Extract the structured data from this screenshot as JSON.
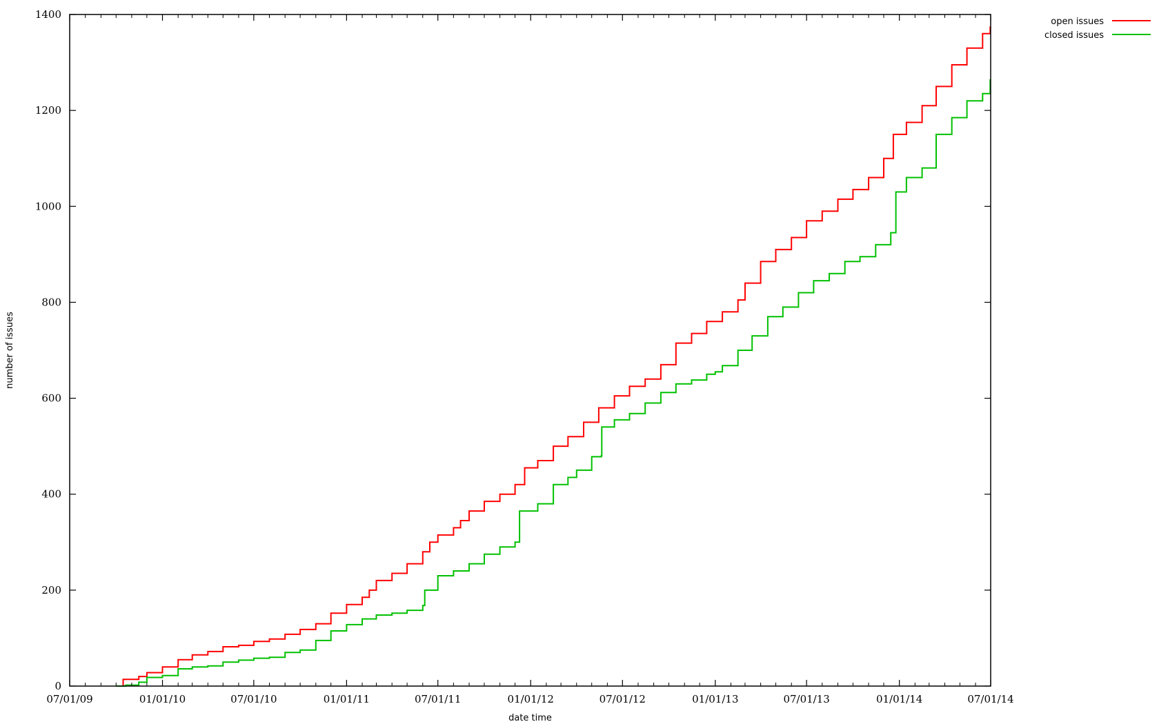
{
  "chart_data": {
    "type": "line",
    "xlabel": "date time",
    "ylabel": "number of issues",
    "x_tick_labels": [
      "07/01/09",
      "01/01/10",
      "07/01/10",
      "01/01/11",
      "07/01/11",
      "01/01/12",
      "07/01/12",
      "01/01/13",
      "07/01/13",
      "01/01/14",
      "07/01/14"
    ],
    "x_tick_dates": [
      "2009-07-01",
      "2010-01-01",
      "2010-07-01",
      "2011-01-01",
      "2011-07-01",
      "2012-01-01",
      "2012-07-01",
      "2013-01-01",
      "2013-07-01",
      "2014-01-01",
      "2014-07-01"
    ],
    "xlim": [
      "2009-07-01",
      "2014-07-01"
    ],
    "ylim": [
      0,
      1400
    ],
    "y_ticks": [
      0,
      200,
      400,
      600,
      800,
      1000,
      1200,
      1400
    ],
    "y_tick_labels": [
      "0",
      "200",
      "400",
      "600",
      "800",
      "1000",
      "1200",
      "1400"
    ],
    "legend_position": "top-right",
    "step": true,
    "grid": false,
    "series": [
      {
        "name": "open issues",
        "color": "#ff0000",
        "points": [
          [
            "2009-10-01",
            0
          ],
          [
            "2009-10-15",
            14
          ],
          [
            "2009-11-15",
            20
          ],
          [
            "2009-12-01",
            28
          ],
          [
            "2010-01-01",
            40
          ],
          [
            "2010-02-01",
            55
          ],
          [
            "2010-03-01",
            65
          ],
          [
            "2010-04-01",
            72
          ],
          [
            "2010-05-01",
            82
          ],
          [
            "2010-06-01",
            85
          ],
          [
            "2010-07-01",
            93
          ],
          [
            "2010-08-01",
            98
          ],
          [
            "2010-09-01",
            108
          ],
          [
            "2010-10-01",
            118
          ],
          [
            "2010-11-01",
            130
          ],
          [
            "2010-12-01",
            152
          ],
          [
            "2011-01-01",
            170
          ],
          [
            "2011-02-01",
            185
          ],
          [
            "2011-02-15",
            200
          ],
          [
            "2011-03-01",
            220
          ],
          [
            "2011-04-01",
            235
          ],
          [
            "2011-05-01",
            255
          ],
          [
            "2011-06-01",
            280
          ],
          [
            "2011-06-15",
            300
          ],
          [
            "2011-07-01",
            315
          ],
          [
            "2011-08-01",
            330
          ],
          [
            "2011-08-15",
            345
          ],
          [
            "2011-09-01",
            365
          ],
          [
            "2011-10-01",
            385
          ],
          [
            "2011-11-01",
            400
          ],
          [
            "2011-12-01",
            420
          ],
          [
            "2011-12-20",
            455
          ],
          [
            "2012-01-15",
            470
          ],
          [
            "2012-02-15",
            500
          ],
          [
            "2012-03-15",
            520
          ],
          [
            "2012-04-15",
            550
          ],
          [
            "2012-05-15",
            580
          ],
          [
            "2012-06-15",
            605
          ],
          [
            "2012-07-15",
            625
          ],
          [
            "2012-08-15",
            640
          ],
          [
            "2012-09-15",
            670
          ],
          [
            "2012-10-15",
            715
          ],
          [
            "2012-11-15",
            735
          ],
          [
            "2012-12-15",
            760
          ],
          [
            "2013-01-15",
            780
          ],
          [
            "2013-02-15",
            805
          ],
          [
            "2013-03-01",
            840
          ],
          [
            "2013-04-01",
            885
          ],
          [
            "2013-05-01",
            910
          ],
          [
            "2013-06-01",
            935
          ],
          [
            "2013-07-01",
            970
          ],
          [
            "2013-08-01",
            990
          ],
          [
            "2013-09-01",
            1015
          ],
          [
            "2013-10-01",
            1035
          ],
          [
            "2013-11-01",
            1060
          ],
          [
            "2013-12-01",
            1100
          ],
          [
            "2013-12-20",
            1150
          ],
          [
            "2014-01-15",
            1175
          ],
          [
            "2014-02-15",
            1210
          ],
          [
            "2014-03-15",
            1250
          ],
          [
            "2014-04-15",
            1295
          ],
          [
            "2014-05-15",
            1330
          ],
          [
            "2014-06-15",
            1360
          ],
          [
            "2014-06-30",
            1375
          ]
        ]
      },
      {
        "name": "closed issues",
        "color": "#00c000",
        "points": [
          [
            "2009-10-01",
            0
          ],
          [
            "2009-10-20",
            2
          ],
          [
            "2009-11-15",
            8
          ],
          [
            "2009-12-01",
            18
          ],
          [
            "2010-01-01",
            22
          ],
          [
            "2010-02-01",
            36
          ],
          [
            "2010-03-01",
            40
          ],
          [
            "2010-04-01",
            42
          ],
          [
            "2010-05-01",
            50
          ],
          [
            "2010-06-01",
            54
          ],
          [
            "2010-07-01",
            58
          ],
          [
            "2010-08-01",
            60
          ],
          [
            "2010-09-01",
            70
          ],
          [
            "2010-10-01",
            75
          ],
          [
            "2010-11-01",
            95
          ],
          [
            "2010-12-01",
            115
          ],
          [
            "2011-01-01",
            128
          ],
          [
            "2011-02-01",
            140
          ],
          [
            "2011-03-01",
            148
          ],
          [
            "2011-04-01",
            152
          ],
          [
            "2011-05-01",
            158
          ],
          [
            "2011-06-01",
            168
          ],
          [
            "2011-06-05",
            200
          ],
          [
            "2011-07-01",
            230
          ],
          [
            "2011-08-01",
            240
          ],
          [
            "2011-09-01",
            255
          ],
          [
            "2011-10-01",
            275
          ],
          [
            "2011-11-01",
            290
          ],
          [
            "2011-12-01",
            300
          ],
          [
            "2011-12-10",
            365
          ],
          [
            "2012-01-15",
            380
          ],
          [
            "2012-02-15",
            420
          ],
          [
            "2012-03-15",
            435
          ],
          [
            "2012-04-01",
            450
          ],
          [
            "2012-05-01",
            478
          ],
          [
            "2012-05-20",
            480
          ],
          [
            "2012-05-21",
            540
          ],
          [
            "2012-06-15",
            555
          ],
          [
            "2012-07-15",
            568
          ],
          [
            "2012-08-15",
            590
          ],
          [
            "2012-09-15",
            612
          ],
          [
            "2012-10-15",
            630
          ],
          [
            "2012-11-15",
            638
          ],
          [
            "2012-12-15",
            650
          ],
          [
            "2013-01-01",
            655
          ],
          [
            "2013-01-15",
            668
          ],
          [
            "2013-02-15",
            700
          ],
          [
            "2013-03-15",
            730
          ],
          [
            "2013-04-15",
            770
          ],
          [
            "2013-05-15",
            790
          ],
          [
            "2013-06-15",
            820
          ],
          [
            "2013-07-15",
            845
          ],
          [
            "2013-08-15",
            860
          ],
          [
            "2013-09-15",
            885
          ],
          [
            "2013-10-15",
            895
          ],
          [
            "2013-11-15",
            920
          ],
          [
            "2013-12-15",
            945
          ],
          [
            "2013-12-25",
            1030
          ],
          [
            "2014-01-15",
            1060
          ],
          [
            "2014-02-15",
            1080
          ],
          [
            "2014-03-15",
            1150
          ],
          [
            "2014-04-15",
            1185
          ],
          [
            "2014-05-15",
            1220
          ],
          [
            "2014-06-15",
            1235
          ],
          [
            "2014-06-30",
            1265
          ]
        ]
      }
    ]
  }
}
